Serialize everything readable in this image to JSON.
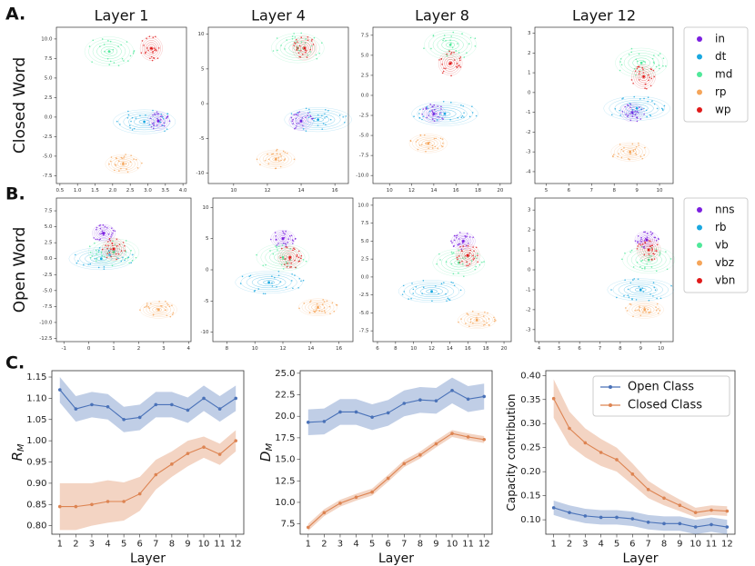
{
  "panel_labels": [
    "A.",
    "B.",
    "C."
  ],
  "rows": [
    {
      "label": "Closed Word",
      "classes": [
        {
          "name": "in",
          "color": "#7b1fe0"
        },
        {
          "name": "dt",
          "color": "#1aa8e0"
        },
        {
          "name": "md",
          "color": "#4fe89a"
        },
        {
          "name": "rp",
          "color": "#f5a55a"
        },
        {
          "name": "wp",
          "color": "#e01a1a"
        }
      ]
    },
    {
      "label": "Open Word",
      "classes": [
        {
          "name": "nns",
          "color": "#7b1fe0"
        },
        {
          "name": "rb",
          "color": "#1aa8e0"
        },
        {
          "name": "vb",
          "color": "#4fe89a"
        },
        {
          "name": "vbz",
          "color": "#f5a55a"
        },
        {
          "name": "vbn",
          "color": "#e01a1a"
        }
      ]
    }
  ],
  "chart_data": [
    {
      "type": "kde",
      "title": "Layer 1",
      "xlim": [
        0.4,
        4.1
      ],
      "ylim": [
        -8.5,
        11.5
      ],
      "xticks": [
        0.5,
        {
          "value": 1,
          "label": "1.0"
        },
        1.5,
        {
          "value": 2,
          "label": "2.0"
        },
        2.5,
        {
          "value": 3,
          "label": "3.0"
        },
        3.5,
        {
          "value": 4,
          "label": "4.0"
        }
      ],
      "yticks": [
        {
          "value": 10,
          "label": "10.0"
        },
        7.5,
        {
          "value": 5,
          "label": "5.0"
        },
        2.5,
        {
          "value": 0,
          "label": "0.0"
        },
        -2.5,
        {
          "value": -5,
          "label": "-5.0"
        },
        -7.5
      ],
      "centers": [
        [
          3.3,
          -0.5
        ],
        [
          2.9,
          -0.6
        ],
        [
          1.9,
          8.4
        ],
        [
          2.3,
          -6
        ],
        [
          3.1,
          8.8
        ]
      ]
    },
    {
      "type": "kde",
      "title": "Layer 4",
      "xlim": [
        8.5,
        16.8
      ],
      "ylim": [
        -11.5,
        11
      ],
      "xticks": [
        10,
        12,
        14,
        16
      ],
      "yticks": [
        10,
        5,
        0,
        -5,
        -10
      ],
      "centers": [
        [
          14,
          -2.5
        ],
        [
          15,
          -2.3
        ],
        [
          13.8,
          8
        ],
        [
          12.5,
          -8
        ],
        [
          14.2,
          8
        ]
      ]
    },
    {
      "type": "kde",
      "title": "Layer 8",
      "xlim": [
        8.5,
        21
      ],
      "ylim": [
        -11,
        8.5
      ],
      "xticks": [
        10,
        12,
        14,
        16,
        18,
        20
      ],
      "yticks": [
        7.5,
        {
          "value": 5,
          "label": "5.0"
        },
        2.5,
        {
          "value": 0,
          "label": "0.0"
        },
        -2.5,
        {
          "value": -5,
          "label": "-5.0"
        },
        -7.5,
        {
          "value": -10,
          "label": "-10.0"
        }
      ],
      "centers": [
        [
          14,
          -2.3
        ],
        [
          15,
          -2.3
        ],
        [
          15.5,
          6.3
        ],
        [
          13.5,
          -6
        ],
        [
          15.5,
          4
        ]
      ]
    },
    {
      "type": "kde",
      "title": "Layer 12",
      "xlim": [
        4.5,
        10.6
      ],
      "ylim": [
        -4.6,
        3.3
      ],
      "xticks": [
        5,
        6,
        7,
        8,
        9,
        10
      ],
      "yticks": [
        3,
        2,
        1,
        0,
        -1,
        -2,
        -3,
        -4
      ],
      "centers": [
        [
          8.8,
          -1
        ],
        [
          9,
          -0.8
        ],
        [
          9.2,
          1.5
        ],
        [
          8.7,
          -3
        ],
        [
          9.3,
          0.8
        ]
      ]
    },
    {
      "type": "kde",
      "xlim": [
        -1.3,
        4.1
      ],
      "ylim": [
        -13,
        9.5
      ],
      "xticks": [
        -1,
        0,
        1,
        2,
        3,
        4
      ],
      "yticks": [
        7.5,
        {
          "value": 5,
          "label": "5.0"
        },
        2.5,
        {
          "value": 0,
          "label": "0.0"
        },
        -2.5,
        {
          "value": -5,
          "label": "-5.0"
        },
        -7.5,
        {
          "value": -10,
          "label": "-10.0"
        },
        -12.5
      ],
      "centers": [
        [
          0.6,
          4
        ],
        [
          0.5,
          0
        ],
        [
          1,
          1
        ],
        [
          2.8,
          -8
        ],
        [
          1,
          1.5
        ]
      ]
    },
    {
      "type": "kde",
      "xlim": [
        7,
        17
      ],
      "ylim": [
        -11.5,
        11.5
      ],
      "xticks": [
        8,
        10,
        12,
        14,
        16
      ],
      "yticks": [
        10,
        5,
        0,
        -5,
        -10
      ],
      "centers": [
        [
          12,
          5
        ],
        [
          11,
          -2
        ],
        [
          12,
          2
        ],
        [
          14.5,
          -6
        ],
        [
          12.5,
          2
        ]
      ]
    },
    {
      "type": "kde",
      "xlim": [
        5.5,
        20.8
      ],
      "ylim": [
        -9,
        11
      ],
      "xticks": [
        6,
        8,
        10,
        12,
        14,
        16,
        18,
        20
      ],
      "yticks": [
        {
          "value": 10,
          "label": "10.0"
        },
        7.5,
        {
          "value": 5,
          "label": "5.0"
        },
        2.5,
        {
          "value": 0,
          "label": "0.0"
        },
        -2.5,
        {
          "value": -5,
          "label": "-5.0"
        },
        -7.5
      ],
      "centers": [
        [
          15.5,
          5
        ],
        [
          12,
          -2
        ],
        [
          15,
          2
        ],
        [
          17,
          -6
        ],
        [
          16,
          3
        ]
      ]
    },
    {
      "type": "kde",
      "xlim": [
        3.8,
        10.6
      ],
      "ylim": [
        -3.6,
        3.6
      ],
      "xticks": [
        4,
        5,
        6,
        7,
        8,
        9,
        10
      ],
      "yticks": [
        3,
        2,
        1,
        0,
        -1,
        -2,
        -3
      ],
      "centers": [
        [
          9.3,
          1.5
        ],
        [
          9,
          -1
        ],
        [
          9.4,
          0.5
        ],
        [
          9.2,
          -2
        ],
        [
          9.4,
          1
        ]
      ]
    },
    {
      "type": "line",
      "xlabel": "Layer",
      "ylabel": "R",
      "ylabel_sub": "M",
      "x": [
        1,
        2,
        3,
        4,
        5,
        6,
        7,
        8,
        9,
        10,
        11,
        12
      ],
      "xlim": [
        0.5,
        12.5
      ],
      "xticks": [
        1,
        2,
        3,
        4,
        5,
        6,
        7,
        8,
        9,
        10,
        11,
        12
      ],
      "ylim": [
        0.78,
        1.165
      ],
      "yticks": [
        {
          "value": 0.8,
          "label": "0.80"
        },
        0.85,
        {
          "value": 0.9,
          "label": "0.90"
        },
        0.95,
        {
          "value": 1,
          "label": "1.00"
        },
        1.05,
        {
          "value": 1.1,
          "label": "1.10"
        },
        1.15
      ],
      "series": [
        {
          "color": "#4a72b8",
          "values": [
            1.12,
            1.075,
            1.085,
            1.08,
            1.05,
            1.055,
            1.085,
            1.085,
            1.072,
            1.1,
            1.075,
            1.1
          ],
          "errors": [
            0.03,
            0.03,
            0.03,
            0.03,
            0.03,
            0.03,
            0.03,
            0.03,
            0.03,
            0.03,
            0.03,
            0.03
          ]
        },
        {
          "color": "#dd8452",
          "values": [
            0.845,
            0.845,
            0.85,
            0.857,
            0.857,
            0.875,
            0.92,
            0.945,
            0.97,
            0.985,
            0.968,
            1.0
          ],
          "errors": [
            0.055,
            0.055,
            0.05,
            0.05,
            0.045,
            0.04,
            0.035,
            0.03,
            0.03,
            0.025,
            0.025,
            0.025
          ]
        }
      ]
    },
    {
      "type": "line",
      "xlabel": "Layer",
      "ylabel": "D",
      "ylabel_sub": "M",
      "x": [
        1,
        2,
        3,
        4,
        5,
        6,
        7,
        8,
        9,
        10,
        11,
        12
      ],
      "xlim": [
        0.5,
        12.5
      ],
      "xticks": [
        1,
        2,
        3,
        4,
        5,
        6,
        7,
        8,
        9,
        10,
        11,
        12
      ],
      "ylim": [
        6.3,
        25.3
      ],
      "yticks": [
        7.5,
        {
          "value": 10,
          "label": "10.0"
        },
        12.5,
        {
          "value": 15,
          "label": "15.0"
        },
        17.5,
        {
          "value": 20,
          "label": "20.0"
        },
        22.5,
        {
          "value": 25,
          "label": "25.0"
        }
      ],
      "series": [
        {
          "color": "#4a72b8",
          "values": [
            19.3,
            19.4,
            20.5,
            20.5,
            19.9,
            20.4,
            21.5,
            21.9,
            21.8,
            23.0,
            22.0,
            22.3
          ],
          "errors": [
            1.5,
            1.5,
            1.5,
            1.5,
            1.5,
            1.5,
            1.5,
            1.5,
            1.5,
            1.5,
            1.5,
            1.5
          ]
        },
        {
          "color": "#dd8452",
          "values": [
            7.1,
            8.8,
            9.9,
            10.6,
            11.2,
            12.8,
            14.5,
            15.5,
            16.8,
            18.0,
            17.6,
            17.3
          ],
          "errors": [
            0.4,
            0.4,
            0.4,
            0.4,
            0.4,
            0.4,
            0.4,
            0.4,
            0.4,
            0.4,
            0.4,
            0.4
          ]
        }
      ]
    },
    {
      "type": "line",
      "xlabel": "Layer",
      "ylabel": "Capacity contribution",
      "x": [
        1,
        2,
        3,
        4,
        5,
        6,
        7,
        8,
        9,
        10,
        11,
        12
      ],
      "xlim": [
        0.5,
        12.5
      ],
      "xticks": [
        1,
        2,
        3,
        4,
        5,
        6,
        7,
        8,
        9,
        10,
        11,
        12
      ],
      "ylim": [
        0.07,
        0.41
      ],
      "yticks": [
        {
          "value": 0.1,
          "label": "0.10"
        },
        0.15,
        {
          "value": 0.2,
          "label": "0.20"
        },
        0.25,
        {
          "value": 0.3,
          "label": "0.30"
        },
        0.35,
        {
          "value": 0.4,
          "label": "0.40"
        }
      ],
      "legend": "upper right",
      "series": [
        {
          "name": "Open Class",
          "color": "#4a72b8",
          "values": [
            0.125,
            0.115,
            0.108,
            0.105,
            0.105,
            0.102,
            0.095,
            0.092,
            0.092,
            0.085,
            0.09,
            0.085
          ],
          "errors": [
            0.015,
            0.015,
            0.015,
            0.015,
            0.015,
            0.015,
            0.015,
            0.015,
            0.015,
            0.015,
            0.015,
            0.015
          ]
        },
        {
          "name": "Closed Class",
          "color": "#dd8452",
          "values": [
            0.352,
            0.29,
            0.26,
            0.24,
            0.225,
            0.195,
            0.163,
            0.145,
            0.13,
            0.115,
            0.12,
            0.118
          ],
          "errors": [
            0.04,
            0.035,
            0.03,
            0.028,
            0.025,
            0.022,
            0.018,
            0.015,
            0.012,
            0.01,
            0.01,
            0.01
          ]
        }
      ]
    }
  ]
}
